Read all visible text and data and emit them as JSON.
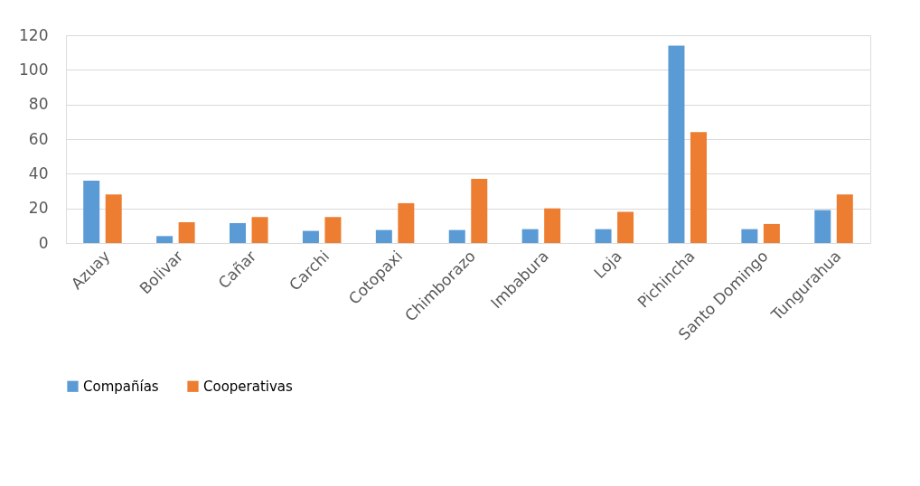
{
  "chart_data": {
    "type": "bar",
    "categories": [
      "Azuay",
      "Bolivar",
      "Cañar",
      "Carchi",
      "Cotopaxi",
      "Chimborazo",
      "Imbabura",
      "Loja",
      "Pichincha",
      "Santo Domingo",
      "Tungurahua"
    ],
    "series": [
      {
        "name": "Compañías",
        "color": "#5b9bd5",
        "values": [
          36,
          4,
          11.5,
          7,
          7.5,
          7.5,
          8,
          8,
          114,
          8,
          19
        ]
      },
      {
        "name": "Cooperativas",
        "color": "#ed7d31",
        "values": [
          28,
          12,
          15,
          15,
          23,
          37,
          20,
          18,
          64,
          11,
          28
        ]
      }
    ],
    "ylim": [
      0,
      120
    ],
    "yticks": [
      0,
      20,
      40,
      60,
      80,
      100,
      120
    ],
    "grid": "y",
    "legend": "bottom"
  }
}
